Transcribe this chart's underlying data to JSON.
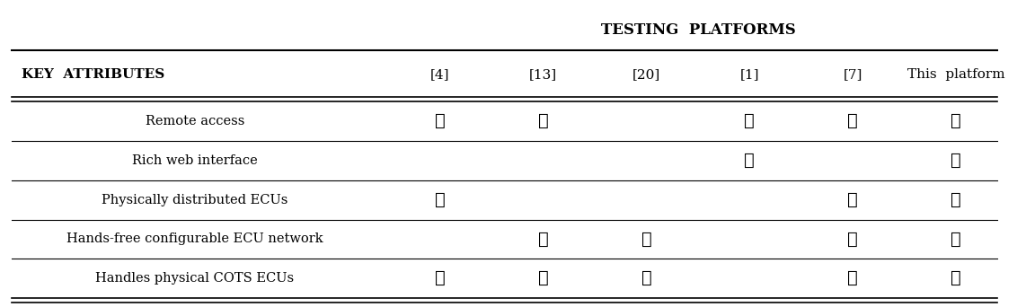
{
  "title_top": "TESTING  PLATFORMS",
  "header_left": "KEY  ATTRIBUTES",
  "columns": [
    "[4]",
    "[13]",
    "[20]",
    "[1]",
    "[7]",
    "This  platform"
  ],
  "rows": [
    "Remote access",
    "Rich web interface",
    "Physically distributed ECUs",
    "Hands-free configurable ECU network",
    "Handles physical COTS ECUs"
  ],
  "checks": [
    [
      true,
      true,
      false,
      true,
      true,
      true
    ],
    [
      false,
      false,
      false,
      true,
      false,
      true
    ],
    [
      true,
      false,
      false,
      false,
      true,
      true
    ],
    [
      false,
      true,
      true,
      false,
      true,
      true
    ],
    [
      true,
      true,
      true,
      false,
      true,
      true
    ]
  ],
  "bg_color": "#ffffff",
  "text_color": "#000000",
  "check_symbol": "✓",
  "figsize": [
    11.32,
    3.42
  ],
  "dpi": 100
}
